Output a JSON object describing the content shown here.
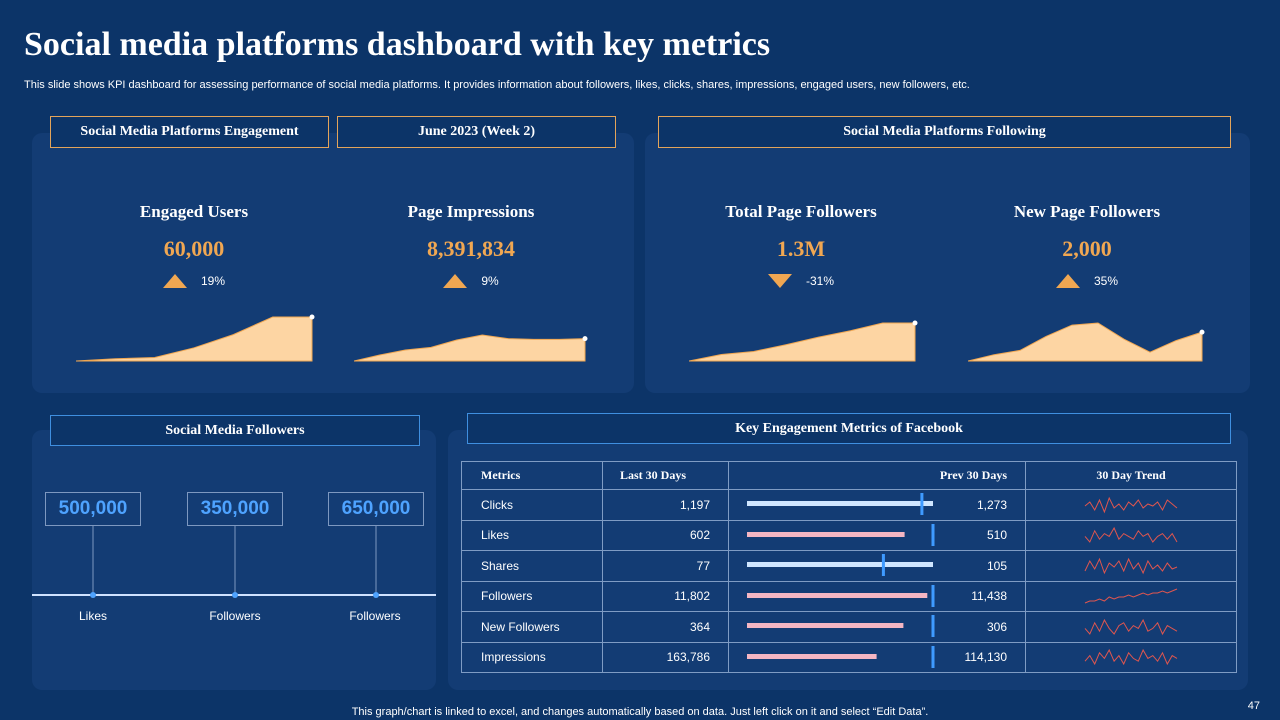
{
  "title": "Social media platforms dashboard with key metrics",
  "subtitle": "This slide shows KPI dashboard for assessing performance of social media platforms. It provides information about followers, likes, clicks, shares, impressions, engaged users, new followers, etc.",
  "headers": {
    "engagement": "Social Media Platforms  Engagement",
    "period": "June 2023 (Week 2)",
    "following": "Social Media Platforms  Following",
    "followers": "Social Media Followers",
    "facebook": "Key Engagement  Metrics of Facebook"
  },
  "kpis": [
    {
      "label": "Engaged Users",
      "value": "60,000",
      "change": "19%",
      "direction": "up"
    },
    {
      "label": "Page Impressions",
      "value": "8,391,834",
      "change": "9%",
      "direction": "up"
    },
    {
      "label": "Total Page Followers",
      "value": "1.3M",
      "change": "-31%",
      "direction": "down"
    },
    {
      "label": "New Page Followers",
      "value": "2,000",
      "change": "35%",
      "direction": "up"
    }
  ],
  "followers": [
    {
      "value": "500,000",
      "label": "Likes"
    },
    {
      "value": "350,000",
      "label": "Followers"
    },
    {
      "value": "650,000",
      "label": "Followers"
    }
  ],
  "table": {
    "columns": [
      "Metrics",
      "Last 30 Days",
      "Prev 30 Days",
      "30 Day Trend"
    ],
    "rows": [
      {
        "metric": "Clicks",
        "last": "1,197",
        "prev": "1,273"
      },
      {
        "metric": "Likes",
        "last": "602",
        "prev": "510"
      },
      {
        "metric": "Shares",
        "last": "77",
        "prev": "105"
      },
      {
        "metric": "Followers",
        "last": "11,802",
        "prev": "11,438"
      },
      {
        "metric": "New Followers",
        "last": "364",
        "prev": "306"
      },
      {
        "metric": "Impressions",
        "last": "163,786",
        "prev": "114,130"
      }
    ]
  },
  "chart_data": [
    {
      "type": "area",
      "title": "Engaged Users trend",
      "x": [
        0,
        1,
        2,
        3,
        4,
        5,
        6
      ],
      "values": [
        0,
        5,
        8,
        30,
        60,
        100,
        100
      ],
      "color": "#fdd5a3"
    },
    {
      "type": "area",
      "title": "Page Impressions trend",
      "x": [
        0,
        1,
        2,
        3,
        4,
        5,
        6,
        7,
        8,
        9
      ],
      "values": [
        0,
        30,
        55,
        68,
        105,
        130,
        112,
        108,
        108,
        112
      ],
      "color": "#fdd5a3"
    },
    {
      "type": "area",
      "title": "Total Page Followers trend",
      "x": [
        0,
        1,
        2,
        3,
        4,
        5,
        6,
        7
      ],
      "values": [
        0,
        22,
        32,
        55,
        80,
        102,
        128,
        128
      ],
      "color": "#fdd5a3"
    },
    {
      "type": "area",
      "title": "New Page Followers trend",
      "x": [
        0,
        1,
        2,
        3,
        4,
        5,
        6,
        7,
        8,
        9
      ],
      "values": [
        0,
        18,
        30,
        70,
        102,
        108,
        62,
        25,
        58,
        82
      ],
      "color": "#fdd5a3"
    },
    {
      "type": "bar",
      "title": "Key Engagement Metrics of Facebook — Last 30 Days vs Prev 30 Days",
      "categories": [
        "Clicks",
        "Likes",
        "Shares",
        "Followers",
        "New Followers",
        "Impressions"
      ],
      "series": [
        {
          "name": "Last 30 Days",
          "values": [
            1197,
            602,
            77,
            11802,
            364,
            163786
          ]
        },
        {
          "name": "Prev 30 Days",
          "values": [
            1273,
            510,
            105,
            11438,
            306,
            114130
          ]
        }
      ],
      "colors": {
        "decrease": "#cfe6ff",
        "increase": "#f4b6c3",
        "marker": "#3f9bff"
      }
    },
    {
      "type": "line",
      "title": "30 Day Trend",
      "series": [
        {
          "name": "Clicks",
          "values": [
            5,
            7,
            3,
            8,
            2,
            9,
            4,
            6,
            3,
            7,
            5,
            8,
            4,
            6,
            5,
            7,
            3,
            8,
            6,
            4
          ]
        },
        {
          "name": "Likes",
          "values": [
            5,
            3,
            7,
            4,
            6,
            5,
            8,
            4,
            6,
            5,
            4,
            7,
            5,
            6,
            3,
            5,
            6,
            4,
            6,
            3
          ]
        },
        {
          "name": "Shares",
          "values": [
            3,
            8,
            4,
            9,
            2,
            7,
            5,
            8,
            3,
            9,
            4,
            7,
            2,
            8,
            4,
            6,
            3,
            7,
            4,
            5
          ]
        },
        {
          "name": "Followers",
          "values": [
            2,
            3,
            3,
            4,
            3,
            5,
            4,
            5,
            5,
            6,
            5,
            6,
            7,
            6,
            7,
            7,
            8,
            7,
            8,
            9
          ]
        },
        {
          "name": "New Followers",
          "values": [
            5,
            3,
            7,
            4,
            8,
            5,
            3,
            6,
            7,
            4,
            6,
            5,
            8,
            4,
            5,
            7,
            3,
            6,
            5,
            4
          ]
        },
        {
          "name": "Impressions",
          "values": [
            4,
            6,
            3,
            7,
            5,
            8,
            4,
            6,
            3,
            7,
            5,
            4,
            8,
            5,
            6,
            4,
            7,
            3,
            6,
            5
          ]
        }
      ],
      "color": "#e0564f"
    }
  ],
  "footer": "This graph/chart is linked to excel,  and changes automatically based on data. Just left click on it and select “Edit Data”.",
  "page_number": "47",
  "colors": {
    "background": "#0c3468",
    "panel": "#133c74",
    "accent_orange": "#f0a752",
    "accent_blue": "#4ea3ff",
    "header_border_orange": "#e3a45a",
    "header_border_blue": "#3f8fe0"
  }
}
